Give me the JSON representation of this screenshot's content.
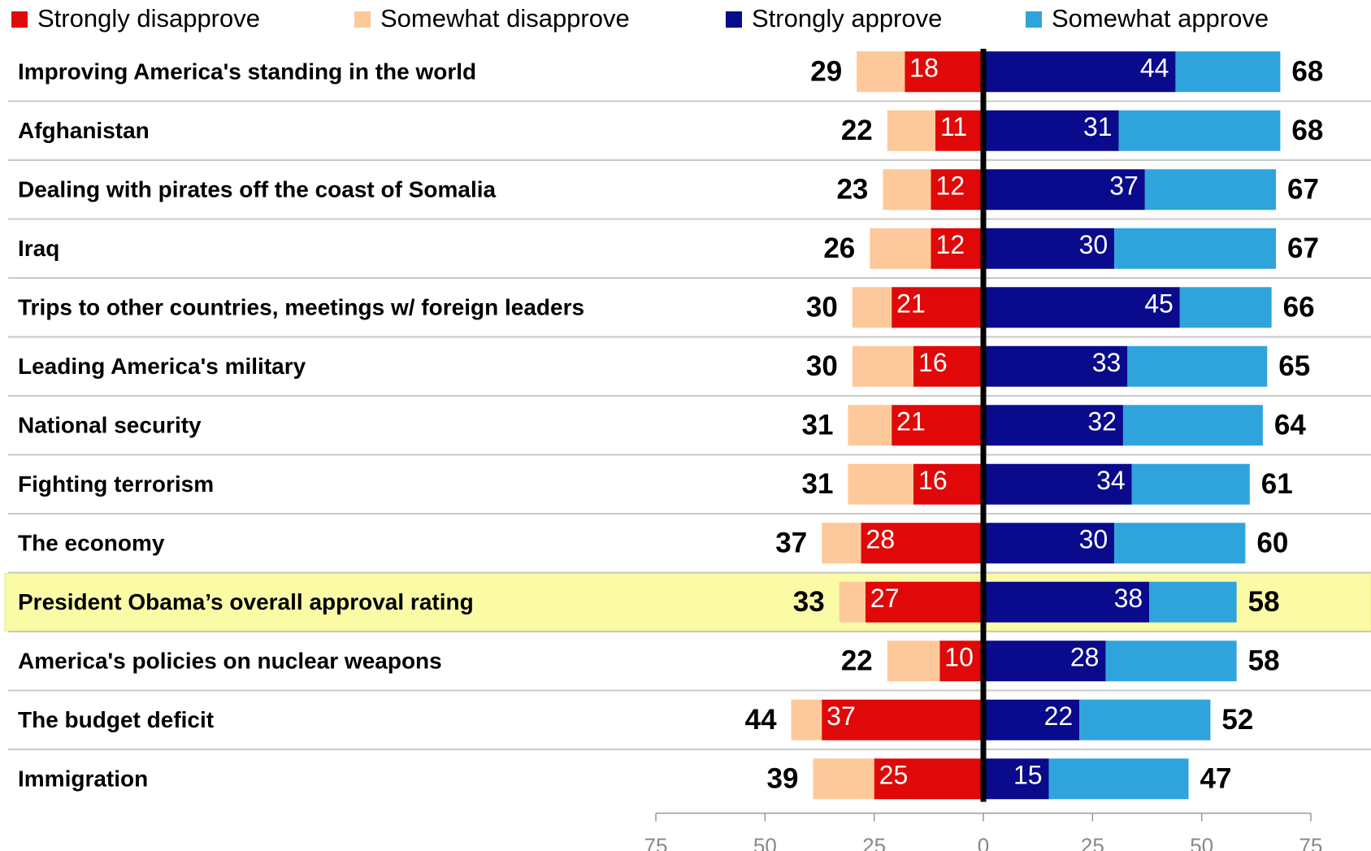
{
  "chart_data": {
    "type": "diverging_bar",
    "categories": [
      "Improving America's standing in the world",
      "Afghanistan",
      "Dealing with pirates off the coast of Somalia",
      "Iraq",
      "Trips to other countries, meetings w/ foreign leaders",
      "Leading America's military",
      "National security",
      "Fighting terrorism",
      "The economy",
      "President Obama’s overall approval rating",
      "America's policies on nuclear weapons",
      "The budget deficit",
      "Immigration"
    ],
    "series": [
      {
        "name": "Strongly disapprove",
        "color": "#e00808",
        "side": "left",
        "show_labels": true,
        "values": [
          18,
          11,
          12,
          12,
          21,
          16,
          21,
          16,
          28,
          27,
          10,
          37,
          25
        ]
      },
      {
        "name": "Somewhat disapprove",
        "color": "#fdc99a",
        "side": "left",
        "show_labels": false,
        "values": [
          11,
          11,
          11,
          14,
          9,
          14,
          10,
          15,
          9,
          6,
          12,
          7,
          14
        ]
      },
      {
        "name": "Strongly approve",
        "color": "#0a0a8c",
        "side": "right",
        "show_labels": true,
        "values": [
          44,
          31,
          37,
          30,
          45,
          33,
          32,
          34,
          30,
          38,
          28,
          22,
          15
        ]
      },
      {
        "name": "Somewhat approve",
        "color": "#2fa4dc",
        "side": "right",
        "show_labels": false,
        "values": [
          24,
          37,
          30,
          37,
          21,
          32,
          32,
          27,
          30,
          20,
          30,
          30,
          32
        ]
      }
    ],
    "disapprove_totals": [
      29,
      22,
      23,
      26,
      30,
      30,
      31,
      31,
      37,
      33,
      22,
      44,
      39
    ],
    "approve_totals": [
      68,
      68,
      67,
      67,
      66,
      65,
      64,
      61,
      60,
      58,
      58,
      52,
      47
    ],
    "highlight": 9,
    "xlim": [
      -75,
      75
    ],
    "xticks": [
      {
        "value": -75,
        "label": "75"
      },
      {
        "value": -50,
        "label": "50"
      },
      {
        "value": -25,
        "label": "25"
      },
      0,
      25,
      50,
      75
    ]
  }
}
